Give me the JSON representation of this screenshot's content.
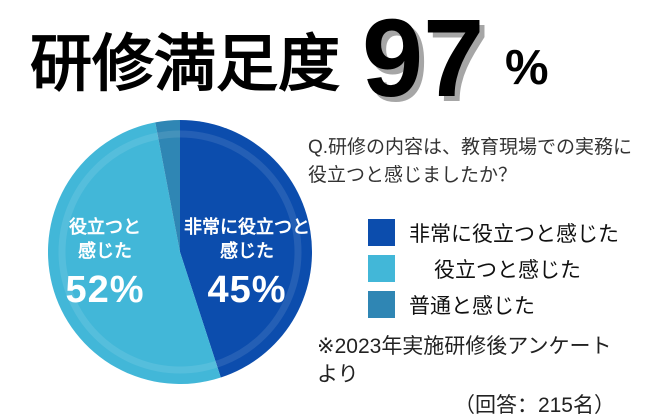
{
  "header": {
    "title": "研修満足度",
    "value": "97",
    "unit": "%"
  },
  "question": {
    "line1": "Q.研修の内容は、教育現場での実務に",
    "line2": "役立つと感じましたか？"
  },
  "pie": {
    "slices": [
      {
        "label_line1": "非常に役立つと",
        "label_line2": "感じた",
        "pct": "45%"
      },
      {
        "label_line1": "役立つと",
        "label_line2": "感じた",
        "pct": "52%"
      }
    ]
  },
  "legend": {
    "items": [
      {
        "label": "非常に役立つと感じた",
        "color": "#0c4dad"
      },
      {
        "label": "役立つと感じた",
        "color": "#42b7d8"
      },
      {
        "label": "普通と感じた",
        "color": "#2f86b4"
      }
    ]
  },
  "footnote": {
    "line1": "※2023年実施研修後アンケートより",
    "line2": "（回答：215名）"
  },
  "colors": {
    "slice_very_useful": "#0c4dad",
    "slice_useful": "#42b7d8",
    "slice_neutral": "#2f86b4",
    "headline_shadow": "#a6a6a6",
    "slice_text": "#ffffff"
  },
  "chart_data": {
    "type": "pie",
    "title": "研修満足度 97%",
    "question": "Q.研修の内容は、教育現場での実務に役立つと感じましたか？",
    "categories": [
      "非常に役立つと感じた",
      "役立つと感じた",
      "普通と感じた"
    ],
    "values": [
      45,
      52,
      3
    ],
    "unit": "percent",
    "colors": [
      "#0c4dad",
      "#42b7d8",
      "#2f86b4"
    ],
    "start_angle": "top",
    "direction": "clockwise",
    "data_labels": [
      "非常に役立つと感じた 45%",
      "役立つと感じた 52%",
      ""
    ],
    "legend_position": "right",
    "source_note": "※2023年実施研修後アンケートより（回答：215名）"
  }
}
